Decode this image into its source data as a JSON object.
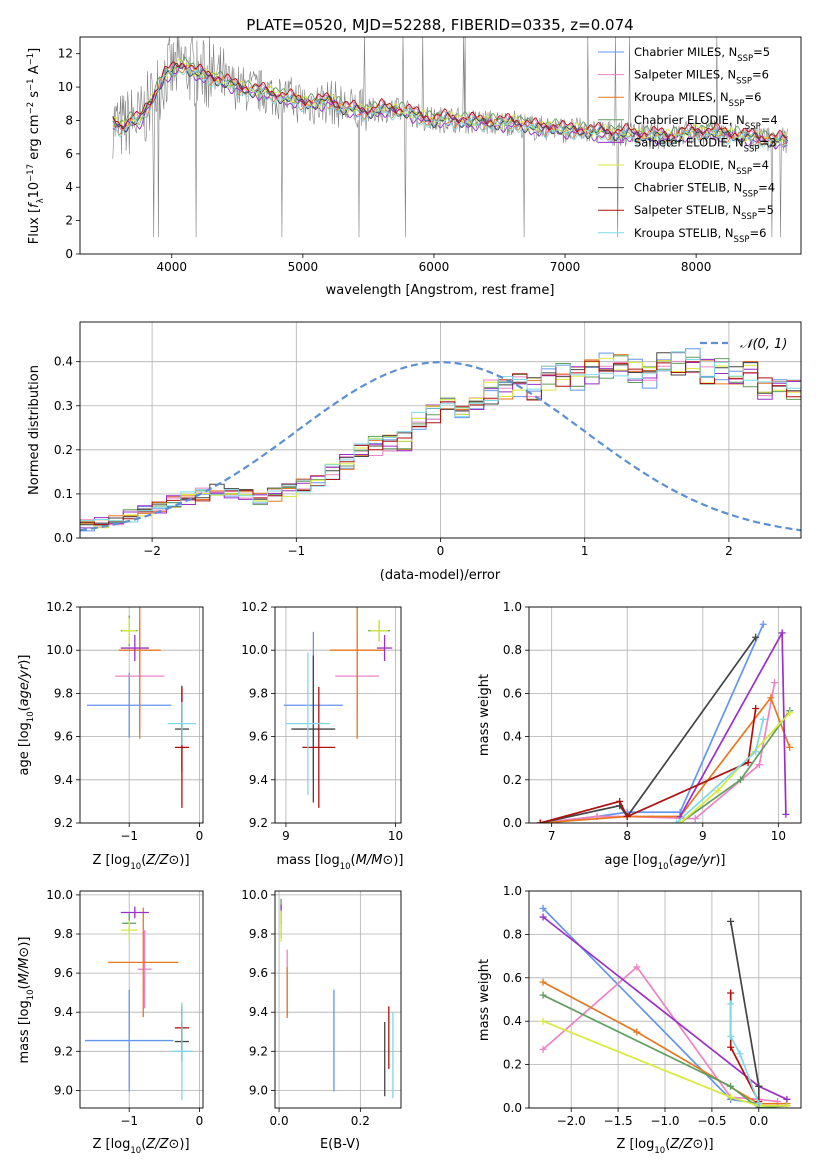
{
  "figure": {
    "title": "PLATE=0520, MJD=52288, FIBERID=0335, z=0.074"
  },
  "colors": {
    "Chabrier MILES": "#6495ed",
    "Salpeter MILES": "#ee82c6",
    "Kroupa MILES": "#e8781e",
    "Chabrier ELODIE": "#5f9e5f",
    "Salpeter ELODIE": "#9b30c8",
    "Kroupa ELODIE": "#d8ea3a",
    "Chabrier STELIB": "#444444",
    "Salpeter STELIB": "#b01010",
    "Kroupa STELIB": "#7fd9e6",
    "data": "#808080",
    "normal": "#5b8fd6",
    "grid": "#b0b0b0"
  },
  "chart_data": [
    {
      "type": "line",
      "panel": "spectrum",
      "xlabel": "wavelength [Angstrom, rest frame]",
      "ylabel": "Flux [f_λ 10^-17 erg cm^-2 s^-1 A^-1]",
      "xlim": [
        3300,
        8800
      ],
      "ylim": [
        0,
        13
      ],
      "xticks": [
        4000,
        5000,
        6000,
        7000,
        8000
      ],
      "yticks": [
        0,
        2,
        4,
        6,
        8,
        10,
        12
      ],
      "grid": false,
      "legend": "top-right",
      "x": [
        3550,
        3600,
        3650,
        3700,
        3750,
        3800,
        3850,
        3900,
        3950,
        4000,
        4050,
        4100,
        4150,
        4200,
        4300,
        4400,
        4500,
        4600,
        4700,
        4800,
        4900,
        5000,
        5100,
        5200,
        5300,
        5400,
        5500,
        5600,
        5700,
        5800,
        5900,
        6000,
        6100,
        6200,
        6300,
        6400,
        6500,
        6600,
        6700,
        6800,
        6900,
        7000,
        7100,
        7200,
        7300,
        7400,
        7500,
        7600,
        7700,
        7800,
        7900,
        8000,
        8100,
        8200,
        8300,
        8400,
        8500,
        8600,
        8700
      ],
      "model_flux": [
        7.9,
        7.6,
        7.7,
        8.1,
        7.9,
        8.6,
        9.2,
        10.0,
        10.8,
        10.9,
        11.2,
        11.3,
        11.0,
        10.8,
        10.6,
        10.3,
        10.0,
        9.8,
        9.7,
        9.5,
        9.3,
        9.1,
        9.0,
        9.2,
        8.8,
        8.6,
        8.5,
        8.7,
        8.6,
        8.5,
        8.2,
        8.0,
        8.1,
        8.0,
        7.9,
        7.9,
        7.8,
        7.9,
        7.7,
        7.5,
        7.6,
        7.4,
        7.4,
        7.3,
        7.3,
        7.2,
        7.2,
        7.1,
        7.1,
        7.0,
        7.2,
        7.3,
        7.3,
        7.2,
        7.1,
        7.0,
        6.9,
        6.8,
        6.8
      ],
      "model_offsets": [
        0.0,
        0.12,
        -0.1,
        0.18,
        -0.15,
        0.08,
        -0.05,
        0.22,
        -0.2
      ],
      "series": [
        {
          "name": "Chabrier MILES, N_SSP=5",
          "model": "Chabrier MILES"
        },
        {
          "name": "Salpeter MILES, N_SSP=6",
          "model": "Salpeter MILES"
        },
        {
          "name": "Kroupa MILES, N_SSP=6",
          "model": "Kroupa MILES"
        },
        {
          "name": "Chabrier ELODIE, N_SSP=4",
          "model": "Chabrier ELODIE"
        },
        {
          "name": "Salpeter ELODIE, N_SSP=3",
          "model": "Salpeter ELODIE"
        },
        {
          "name": "Kroupa ELODIE, N_SSP=4",
          "model": "Kroupa ELODIE"
        },
        {
          "name": "Chabrier STELIB, N_SSP=4",
          "model": "Chabrier STELIB"
        },
        {
          "name": "Salpeter STELIB, N_SSP=5",
          "model": "Salpeter STELIB"
        },
        {
          "name": "Kroupa STELIB, N_SSP=6",
          "model": "Kroupa STELIB"
        }
      ]
    },
    {
      "type": "line",
      "panel": "residuals",
      "xlabel": "(data-model)/error",
      "ylabel": "Normed distribution",
      "xlim": [
        -2.5,
        2.5
      ],
      "ylim": [
        0,
        0.49
      ],
      "xticks": [
        -2,
        -1,
        0,
        1,
        2
      ],
      "yticks": [
        0.0,
        0.1,
        0.2,
        0.3,
        0.4
      ],
      "grid": true,
      "legend": "top-right",
      "reference": {
        "name": "N(0,1)",
        "mean": 0,
        "sigma": 1
      },
      "bin_edges_range": [
        -2.5,
        2.5
      ],
      "bin_width": 0.1,
      "hist_template": [
        0.03,
        0.035,
        0.04,
        0.05,
        0.06,
        0.07,
        0.08,
        0.09,
        0.1,
        0.105,
        0.105,
        0.1,
        0.09,
        0.1,
        0.11,
        0.12,
        0.13,
        0.15,
        0.17,
        0.2,
        0.21,
        0.22,
        0.22,
        0.26,
        0.28,
        0.3,
        0.3,
        0.31,
        0.33,
        0.34,
        0.35,
        0.34,
        0.36,
        0.37,
        0.36,
        0.38,
        0.39,
        0.39,
        0.38,
        0.37,
        0.39,
        0.4,
        0.4,
        0.38,
        0.38,
        0.36,
        0.37,
        0.34,
        0.33,
        0.34,
        0.38,
        0.4,
        0.41,
        0.4,
        0.39,
        0.37,
        0.37,
        0.35,
        0.33,
        0.32,
        0.31,
        0.29,
        0.27,
        0.26,
        0.25,
        0.23,
        0.21,
        0.19,
        0.18,
        0.18,
        0.16,
        0.15,
        0.13,
        0.12,
        0.11,
        0.1,
        0.1,
        0.09,
        0.08,
        0.08,
        0.07,
        0.07,
        0.06,
        0.06,
        0.06,
        0.05,
        0.05,
        0.05,
        0.04,
        0.04,
        0.04,
        0.04,
        0.035,
        0.035,
        0.03,
        0.035,
        0.03,
        0.03,
        0.03,
        0.03
      ]
    },
    {
      "type": "scatter",
      "panel": "age-vs-Z",
      "xlabel": "Z [log10(Z/Z⊙)]",
      "ylabel": "age [log10(age/yr)]",
      "xlim": [
        -1.7,
        0.05
      ],
      "ylim": [
        9.2,
        10.2
      ],
      "xticks": [
        -1,
        0
      ],
      "yticks": [
        9.2,
        9.4,
        9.6,
        9.8,
        10.0,
        10.2
      ],
      "grid": true,
      "points": [
        {
          "model": "Chabrier MILES",
          "x": -1.0,
          "xerr": 0.6,
          "y": 9.745,
          "yerr": 0.15
        },
        {
          "model": "Salpeter MILES",
          "x": -0.85,
          "xerr": 0.35,
          "y": 9.88,
          "yerr": 0.26
        },
        {
          "model": "Kroupa MILES",
          "x": -0.85,
          "xerr": 0.3,
          "y": 10.0,
          "yerr": 0.41
        },
        {
          "model": "Chabrier ELODIE",
          "x": -1.0,
          "xerr": 0.12,
          "y": 10.09,
          "yerr": 0.07
        },
        {
          "model": "Salpeter ELODIE",
          "x": -0.92,
          "xerr": 0.2,
          "y": 10.01,
          "yerr": 0.06
        },
        {
          "model": "Kroupa ELODIE",
          "x": -1.0,
          "xerr": 0.1,
          "y": 10.09,
          "yerr": 0.06
        },
        {
          "model": "Chabrier STELIB",
          "x": -0.25,
          "xerr": 0.1,
          "y": 9.635,
          "yerr": 0.2
        },
        {
          "model": "Salpeter STELIB",
          "x": -0.25,
          "xerr": 0.1,
          "y": 9.55,
          "yerr": 0.28
        },
        {
          "model": "Kroupa STELIB",
          "x": -0.25,
          "xerr": 0.2,
          "y": 9.66,
          "yerr": 0.1
        }
      ]
    },
    {
      "type": "scatter",
      "panel": "age-vs-mass",
      "xlabel": "mass [log10(M/M⊙)]",
      "ylabel": "",
      "xlim": [
        8.9,
        10.05
      ],
      "ylim": [
        9.2,
        10.2
      ],
      "xticks": [
        9,
        10
      ],
      "yticks": [
        9.2,
        9.4,
        9.6,
        9.8,
        10.0,
        10.2
      ],
      "grid": true,
      "points": [
        {
          "model": "Chabrier MILES",
          "x": 9.25,
          "xerr": 0.27,
          "y": 9.745,
          "yerr": 0.34
        },
        {
          "model": "Salpeter MILES",
          "x": 9.65,
          "xerr": 0.2,
          "y": 9.88,
          "yerr": 0.2
        },
        {
          "model": "Kroupa MILES",
          "x": 9.65,
          "xerr": 0.25,
          "y": 10.0,
          "yerr": 0.41
        },
        {
          "model": "Chabrier ELODIE",
          "x": 9.85,
          "xerr": 0.1,
          "y": 10.09,
          "yerr": 0.05
        },
        {
          "model": "Salpeter ELODIE",
          "x": 9.9,
          "xerr": 0.07,
          "y": 10.01,
          "yerr": 0.06
        },
        {
          "model": "Kroupa ELODIE",
          "x": 9.85,
          "xerr": 0.08,
          "y": 10.09,
          "yerr": 0.05
        },
        {
          "model": "Chabrier STELIB",
          "x": 9.25,
          "xerr": 0.2,
          "y": 9.635,
          "yerr": 0.34
        },
        {
          "model": "Salpeter STELIB",
          "x": 9.3,
          "xerr": 0.15,
          "y": 9.55,
          "yerr": 0.28
        },
        {
          "model": "Kroupa STELIB",
          "x": 9.2,
          "xerr": 0.2,
          "y": 9.66,
          "yerr": 0.33
        }
      ]
    },
    {
      "type": "line",
      "panel": "mass-weight-vs-age",
      "xlabel": "age [log10(age/yr)]",
      "ylabel": "mass weight",
      "xlim": [
        6.7,
        10.3
      ],
      "ylim": [
        0,
        1.0
      ],
      "xticks": [
        7,
        8,
        9,
        10
      ],
      "yticks": [
        0.0,
        0.2,
        0.4,
        0.6,
        0.8,
        1.0
      ],
      "grid": true,
      "series": [
        {
          "model": "Chabrier MILES",
          "x": [
            6.85,
            7.6,
            8.0,
            8.7,
            9.8
          ],
          "y": [
            0.0,
            0.03,
            0.05,
            0.05,
            0.92
          ]
        },
        {
          "model": "Salpeter MILES",
          "x": [
            6.85,
            7.6,
            8.0,
            8.9,
            9.75,
            9.95
          ],
          "y": [
            0.0,
            0.03,
            0.03,
            0.02,
            0.27,
            0.65
          ]
        },
        {
          "model": "Kroupa MILES",
          "x": [
            6.85,
            8.0,
            8.7,
            9.9,
            10.15
          ],
          "y": [
            0.0,
            0.03,
            0.03,
            0.58,
            0.35
          ]
        },
        {
          "model": "Chabrier ELODIE",
          "x": [
            8.7,
            9.5,
            10.15
          ],
          "y": [
            0.0,
            0.2,
            0.52
          ]
        },
        {
          "model": "Salpeter ELODIE",
          "x": [
            8.7,
            10.05,
            10.1
          ],
          "y": [
            0.03,
            0.88,
            0.04
          ]
        },
        {
          "model": "Kroupa ELODIE",
          "x": [
            8.7,
            9.2,
            10.15
          ],
          "y": [
            0.0,
            0.15,
            0.51
          ]
        },
        {
          "model": "Chabrier STELIB",
          "x": [
            6.85,
            7.9,
            8.0,
            9.7
          ],
          "y": [
            0.0,
            0.08,
            0.03,
            0.86
          ]
        },
        {
          "model": "Salpeter STELIB",
          "x": [
            6.85,
            7.9,
            8.0,
            9.6,
            9.7
          ],
          "y": [
            0.0,
            0.1,
            0.03,
            0.28,
            0.53
          ]
        },
        {
          "model": "Kroupa STELIB",
          "x": [
            8.65,
            9.7,
            9.8
          ],
          "y": [
            0.0,
            0.33,
            0.48
          ]
        }
      ]
    },
    {
      "type": "scatter",
      "panel": "mass-vs-Z",
      "xlabel": "Z [log10(Z/Z⊙)]",
      "ylabel": "mass [log10(M/M⊙)]",
      "xlim": [
        -1.7,
        0.05
      ],
      "ylim": [
        8.91,
        10.02
      ],
      "xticks": [
        -1,
        0
      ],
      "yticks": [
        9.0,
        9.2,
        9.4,
        9.6,
        9.8,
        10.0
      ],
      "grid": true,
      "points": [
        {
          "model": "Chabrier MILES",
          "x": -1.0,
          "xerr": 0.63,
          "y": 9.255,
          "yerr": 0.26
        },
        {
          "model": "Salpeter MILES",
          "x": -0.78,
          "xerr": 0.1,
          "y": 9.62,
          "yerr": 0.2
        },
        {
          "model": "Kroupa MILES",
          "x": -0.8,
          "xerr": 0.5,
          "y": 9.655,
          "yerr": 0.28
        },
        {
          "model": "Chabrier ELODIE",
          "x": -1.0,
          "xerr": 0.1,
          "y": 9.855,
          "yerr": 0.05
        },
        {
          "model": "Salpeter ELODIE",
          "x": -0.92,
          "xerr": 0.2,
          "y": 9.91,
          "yerr": 0.03
        },
        {
          "model": "Kroupa ELODIE",
          "x": -1.0,
          "xerr": 0.12,
          "y": 9.82,
          "yerr": 0.05
        },
        {
          "model": "Chabrier STELIB",
          "x": -0.25,
          "xerr": 0.1,
          "y": 9.25,
          "yerr": 0.1
        },
        {
          "model": "Salpeter STELIB",
          "x": -0.25,
          "xerr": 0.1,
          "y": 9.32,
          "yerr": 0.11
        },
        {
          "model": "Kroupa STELIB",
          "x": -0.25,
          "xerr": 0.15,
          "y": 9.2,
          "yerr": 0.25
        }
      ]
    },
    {
      "type": "scatter",
      "panel": "mass-vs-EBV",
      "xlabel": "E(B-V)",
      "ylabel": "",
      "xlim": [
        -0.01,
        0.3
      ],
      "ylim": [
        8.91,
        10.02
      ],
      "xticks": [
        0.0,
        0.2
      ],
      "yticks": [
        9.0,
        9.2,
        9.4,
        9.6,
        9.8,
        10.0
      ],
      "grid": true,
      "points": [
        {
          "model": "Chabrier MILES",
          "x": 0.135,
          "y": 9.255,
          "yerr": 0.26
        },
        {
          "model": "Salpeter MILES",
          "x": 0.02,
          "y": 9.55,
          "yerr": 0.17
        },
        {
          "model": "Kroupa MILES",
          "x": 0.02,
          "y": 9.5,
          "yerr": 0.13
        },
        {
          "model": "Chabrier ELODIE",
          "x": 0.005,
          "y": 9.88,
          "yerr": 0.1
        },
        {
          "model": "Salpeter ELODIE",
          "x": 0.005,
          "y": 9.9,
          "yerr": 0.05
        },
        {
          "model": "Kroupa ELODIE",
          "x": 0.005,
          "y": 9.84,
          "yerr": 0.08
        },
        {
          "model": "Chabrier STELIB",
          "x": 0.26,
          "y": 9.16,
          "yerr": 0.19
        },
        {
          "model": "Salpeter STELIB",
          "x": 0.27,
          "y": 9.27,
          "yerr": 0.16
        },
        {
          "model": "Kroupa STELIB",
          "x": 0.28,
          "y": 9.18,
          "yerr": 0.22
        }
      ]
    },
    {
      "type": "line",
      "panel": "mass-weight-vs-Z",
      "xlabel": "Z [log10(Z/Z⊙)]",
      "ylabel": "mass weight",
      "xlim": [
        -2.45,
        0.45
      ],
      "ylim": [
        0,
        1.0
      ],
      "xticks": [
        -2.0,
        -1.5,
        -1.0,
        -0.5,
        0.0
      ],
      "yticks": [
        0.0,
        0.2,
        0.4,
        0.6,
        0.8,
        1.0
      ],
      "grid": true,
      "series": [
        {
          "model": "Chabrier MILES",
          "x": [
            -2.3,
            -0.3,
            0.0
          ],
          "y": [
            0.92,
            0.04,
            0.02
          ]
        },
        {
          "model": "Salpeter MILES",
          "x": [
            -2.3,
            -1.3,
            -0.3,
            0.0,
            0.2
          ],
          "y": [
            0.27,
            0.65,
            0.05,
            0.04,
            0.03
          ]
        },
        {
          "model": "Kroupa MILES",
          "x": [
            -2.3,
            -1.3,
            0.0,
            0.3
          ],
          "y": [
            0.58,
            0.35,
            0.02,
            0.02
          ]
        },
        {
          "model": "Chabrier ELODIE",
          "x": [
            -2.3,
            -0.3,
            0.0,
            0.3
          ],
          "y": [
            0.52,
            0.1,
            0.0,
            0.01
          ]
        },
        {
          "model": "Salpeter ELODIE",
          "x": [
            -2.3,
            0.0,
            0.3
          ],
          "y": [
            0.88,
            0.1,
            0.04
          ]
        },
        {
          "model": "Kroupa ELODIE",
          "x": [
            -2.3,
            -0.3,
            0.0,
            0.3
          ],
          "y": [
            0.4,
            0.05,
            0.01,
            0.01
          ]
        },
        {
          "model": "Chabrier STELIB",
          "x": [
            -0.3,
            0.0,
            0.0
          ],
          "y": [
            0.86,
            0.1,
            0.0
          ]
        },
        {
          "model": "Salpeter STELIB",
          "x": [
            -0.3,
            -0.3,
            0.0
          ],
          "y": [
            0.53,
            0.28,
            0.03
          ]
        },
        {
          "model": "Kroupa STELIB",
          "x": [
            -0.3,
            -0.3,
            -0.2,
            0.0
          ],
          "y": [
            0.48,
            0.33,
            0.25,
            0.02
          ]
        }
      ]
    }
  ]
}
